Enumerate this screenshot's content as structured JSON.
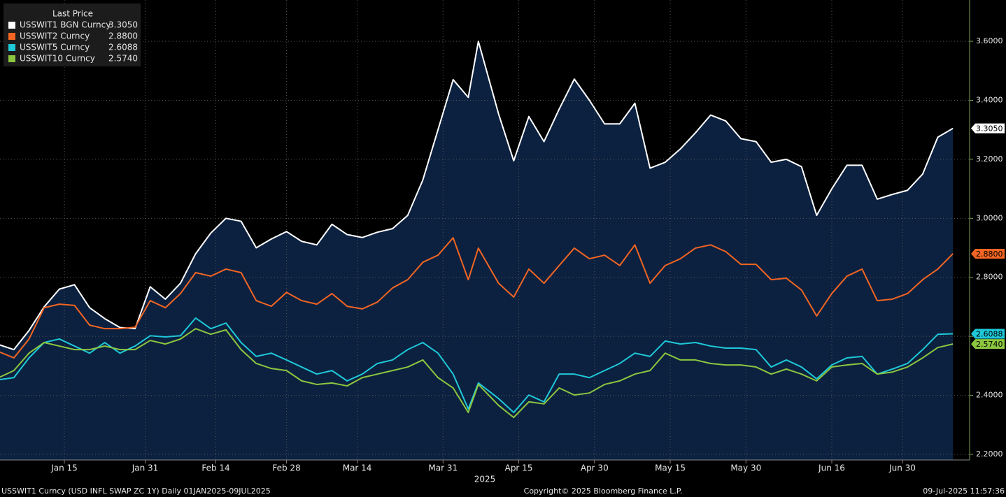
{
  "chart_data": {
    "type": "line",
    "legend_title": "Last Price",
    "x_label": "2025",
    "footer_left": "USSWIT1 Curncy (USD INFL SWAP ZC 1Y)  Daily 01JAN2025-09JUL2025",
    "footer_center": "Copyright© 2025 Bloomberg Finance L.P.",
    "footer_right": "09-Jul-2025 11:57:36",
    "x": [
      1,
      4,
      7,
      10,
      13,
      16,
      19,
      22,
      25,
      28,
      31,
      34,
      37,
      40,
      43,
      46,
      49,
      52,
      55,
      58,
      61,
      64,
      67,
      70,
      73,
      76,
      79,
      82,
      85,
      88,
      91,
      94,
      96,
      100,
      103,
      106,
      109,
      112,
      115,
      118,
      121,
      124,
      127,
      130,
      133,
      136,
      139,
      142,
      145,
      148,
      151,
      154,
      157,
      160,
      163,
      166,
      169,
      172,
      175,
      178,
      181,
      184,
      187,
      190
    ],
    "xlim": [
      1.25,
      193.3
    ],
    "xticks": [
      {
        "value": 14,
        "label": "Jan 15"
      },
      {
        "value": 30,
        "label": "Jan 31"
      },
      {
        "value": 44,
        "label": "Feb 14"
      },
      {
        "value": 58,
        "label": "Feb 28"
      },
      {
        "value": 72,
        "label": "Mar 14"
      },
      {
        "value": 89,
        "label": "Mar 31"
      },
      {
        "value": 104,
        "label": "Apr 15"
      },
      {
        "value": 119,
        "label": "Apr 30"
      },
      {
        "value": 134,
        "label": "May 15"
      },
      {
        "value": 149,
        "label": "May 30"
      },
      {
        "value": 166,
        "label": "Jun 16"
      },
      {
        "value": 180,
        "label": "Jun 30"
      }
    ],
    "ylim": [
      2.181,
      3.74
    ],
    "yticks": [
      {
        "value": 2.2,
        "label": "2.2000"
      },
      {
        "value": 2.4,
        "label": "2.4000"
      },
      {
        "value": 2.6,
        "label": "2.6000"
      },
      {
        "value": 2.8,
        "label": "2.8000"
      },
      {
        "value": 3.0,
        "label": "3.0000"
      },
      {
        "value": 3.2,
        "label": "3.2000"
      },
      {
        "value": 3.4,
        "label": "3.4000"
      },
      {
        "value": 3.6,
        "label": "3.6000"
      }
    ],
    "grid": true,
    "legend": "top-left",
    "area_fill": "#0c2140",
    "series": [
      {
        "name": "USSWIT1 BGN Curncy",
        "color": "#ffffff",
        "last_label": "3.3050",
        "fill": true,
        "values": [
          2.572,
          2.555,
          2.62,
          2.7,
          2.76,
          2.775,
          2.697,
          2.66,
          2.63,
          2.626,
          2.768,
          2.726,
          2.78,
          2.88,
          2.95,
          3.0,
          2.99,
          2.9,
          2.93,
          2.955,
          2.922,
          2.91,
          2.98,
          2.945,
          2.935,
          2.953,
          2.965,
          3.01,
          3.13,
          3.3,
          3.47,
          3.41,
          3.6,
          3.354,
          3.195,
          3.345,
          3.26,
          3.37,
          3.472,
          3.4,
          3.32,
          3.32,
          3.39,
          3.17,
          3.19,
          3.235,
          3.29,
          3.35,
          3.33,
          3.27,
          3.26,
          3.19,
          3.2,
          3.175,
          3.01,
          3.1,
          3.18,
          3.18,
          3.065,
          3.081,
          3.095,
          3.15,
          3.275,
          3.305
        ]
      },
      {
        "name": "USSWIT2 Curncy",
        "color": "#f26522",
        "last_label": "2.8800",
        "values": [
          2.548,
          2.527,
          2.591,
          2.697,
          2.709,
          2.705,
          2.638,
          2.626,
          2.626,
          2.631,
          2.721,
          2.697,
          2.745,
          2.816,
          2.804,
          2.828,
          2.816,
          2.721,
          2.702,
          2.749,
          2.721,
          2.709,
          2.745,
          2.702,
          2.693,
          2.716,
          2.764,
          2.792,
          2.851,
          2.875,
          2.934,
          2.792,
          2.899,
          2.78,
          2.733,
          2.828,
          2.78,
          2.84,
          2.899,
          2.863,
          2.875,
          2.84,
          2.91,
          2.78,
          2.84,
          2.863,
          2.899,
          2.91,
          2.887,
          2.844,
          2.844,
          2.792,
          2.797,
          2.757,
          2.669,
          2.745,
          2.804,
          2.828,
          2.721,
          2.726,
          2.745,
          2.792,
          2.828,
          2.88
        ]
      },
      {
        "name": "USSWIT5 Curncy",
        "color": "#1ec8d8",
        "last_label": "2.6088",
        "values": [
          2.453,
          2.46,
          2.527,
          2.579,
          2.591,
          2.567,
          2.543,
          2.579,
          2.543,
          2.567,
          2.602,
          2.598,
          2.602,
          2.662,
          2.626,
          2.645,
          2.579,
          2.532,
          2.543,
          2.52,
          2.496,
          2.472,
          2.484,
          2.449,
          2.472,
          2.508,
          2.52,
          2.555,
          2.579,
          2.543,
          2.472,
          2.354,
          2.442,
          2.389,
          2.342,
          2.401,
          2.378,
          2.472,
          2.472,
          2.46,
          2.484,
          2.508,
          2.543,
          2.532,
          2.584,
          2.574,
          2.579,
          2.567,
          2.56,
          2.56,
          2.555,
          2.496,
          2.52,
          2.496,
          2.456,
          2.503,
          2.527,
          2.532,
          2.472,
          2.489,
          2.508,
          2.555,
          2.607,
          2.6088
        ]
      },
      {
        "name": "USSWIT10 Curncy",
        "color": "#8cc63f",
        "last_label": "2.5740",
        "values": [
          2.46,
          2.484,
          2.543,
          2.579,
          2.567,
          2.555,
          2.555,
          2.567,
          2.555,
          2.555,
          2.586,
          2.574,
          2.591,
          2.626,
          2.607,
          2.622,
          2.555,
          2.508,
          2.491,
          2.484,
          2.449,
          2.437,
          2.442,
          2.432,
          2.46,
          2.472,
          2.484,
          2.496,
          2.52,
          2.46,
          2.425,
          2.342,
          2.437,
          2.366,
          2.325,
          2.378,
          2.371,
          2.425,
          2.401,
          2.408,
          2.437,
          2.449,
          2.472,
          2.484,
          2.543,
          2.52,
          2.52,
          2.508,
          2.503,
          2.503,
          2.496,
          2.472,
          2.489,
          2.472,
          2.449,
          2.496,
          2.503,
          2.508,
          2.472,
          2.479,
          2.496,
          2.527,
          2.562,
          2.574
        ]
      }
    ]
  }
}
